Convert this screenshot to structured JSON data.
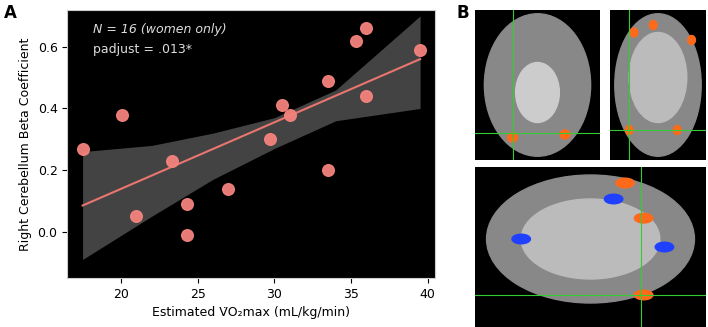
{
  "chart_data": {
    "type": "scatter",
    "x": [
      17.5,
      20.1,
      21.0,
      23.3,
      24.3,
      24.3,
      27.0,
      29.7,
      30.5,
      31.0,
      33.5,
      33.5,
      35.3,
      36.0,
      36.0,
      39.5
    ],
    "values": [
      0.27,
      0.38,
      0.05,
      0.23,
      0.09,
      -0.01,
      0.14,
      0.3,
      0.41,
      0.38,
      0.49,
      0.2,
      0.62,
      0.66,
      0.44,
      0.59
    ],
    "color": "#f4837d",
    "xlabel": "Estimated V̇O₂max (mL/kg/min)",
    "ylabel": "Right Cerebellum Beta Coefficient",
    "annotations": [
      "N = 16 (women only)",
      "padjust = .013*"
    ],
    "xlim": [
      16.5,
      40.5
    ],
    "ylim": [
      -0.15,
      0.72
    ],
    "xticks": [
      20,
      25,
      30,
      35,
      40
    ],
    "yticks": [
      {
        "value": 0.0,
        "label": "0.0"
      },
      {
        "value": 0.2,
        "label": "0.2"
      },
      {
        "value": 0.4,
        "label": "0.4"
      },
      {
        "value": 0.6,
        "label": "0.6"
      }
    ],
    "grid": false,
    "fit": {
      "x": [
        17.5,
        39.5
      ],
      "y": [
        0.085,
        0.56
      ],
      "color": "#e8766f"
    },
    "band": {
      "x": [
        17.5,
        22,
        26,
        30,
        34,
        39.5
      ],
      "lower": [
        -0.09,
        0.05,
        0.17,
        0.27,
        0.36,
        0.4
      ],
      "upper": [
        0.26,
        0.28,
        0.32,
        0.37,
        0.46,
        0.7
      ],
      "color": "#555555"
    }
  },
  "panel_labels": [
    "A",
    "B"
  ]
}
